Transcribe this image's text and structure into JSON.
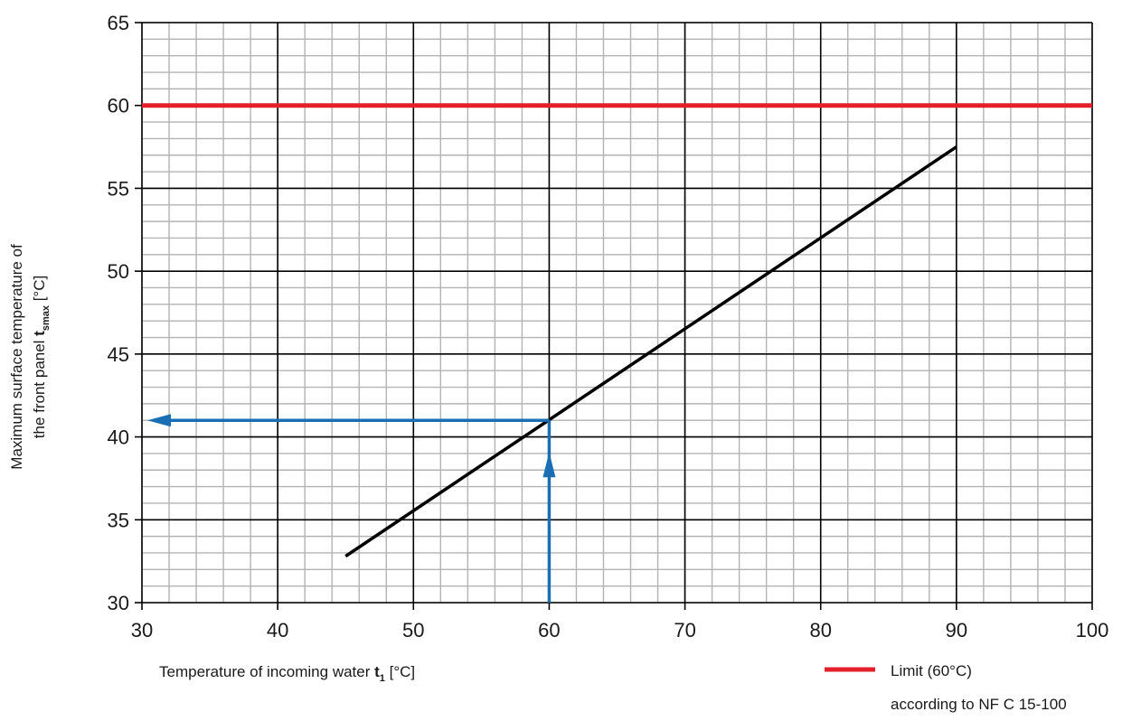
{
  "chart_data": {
    "type": "line",
    "x_axis": {
      "label_prefix": "Temperature of incoming water ",
      "label_symbol": "t",
      "label_subscript": "1",
      "label_suffix": " [°C]",
      "range": [
        30,
        100
      ],
      "ticks": [
        30,
        40,
        50,
        60,
        70,
        80,
        90,
        100
      ],
      "minor_step": 2
    },
    "y_axis": {
      "label_line1": "Maximum surface temperature of",
      "label_line2_prefix": "the front panel ",
      "label_symbol": "t",
      "label_subscript": "smax",
      "label_suffix": " [°C]",
      "range": [
        30,
        65
      ],
      "ticks": [
        30,
        35,
        40,
        45,
        50,
        55,
        60,
        65
      ],
      "minor_step": 1
    },
    "grid": true,
    "series": [
      {
        "x": [
          45,
          90
        ],
        "y": [
          32.8,
          57.5
        ],
        "color": "#000000"
      },
      {
        "name": "Limit (60°C)",
        "name_line2": "according to NF C 15-100",
        "x": [
          30,
          100
        ],
        "y": [
          60,
          60
        ],
        "color": "#e3212a"
      }
    ],
    "annotations": [
      {
        "type": "reading-arrows",
        "x": 60,
        "y": 41,
        "color": "#1a6fb4"
      }
    ],
    "legend_position": "bottom-right"
  }
}
